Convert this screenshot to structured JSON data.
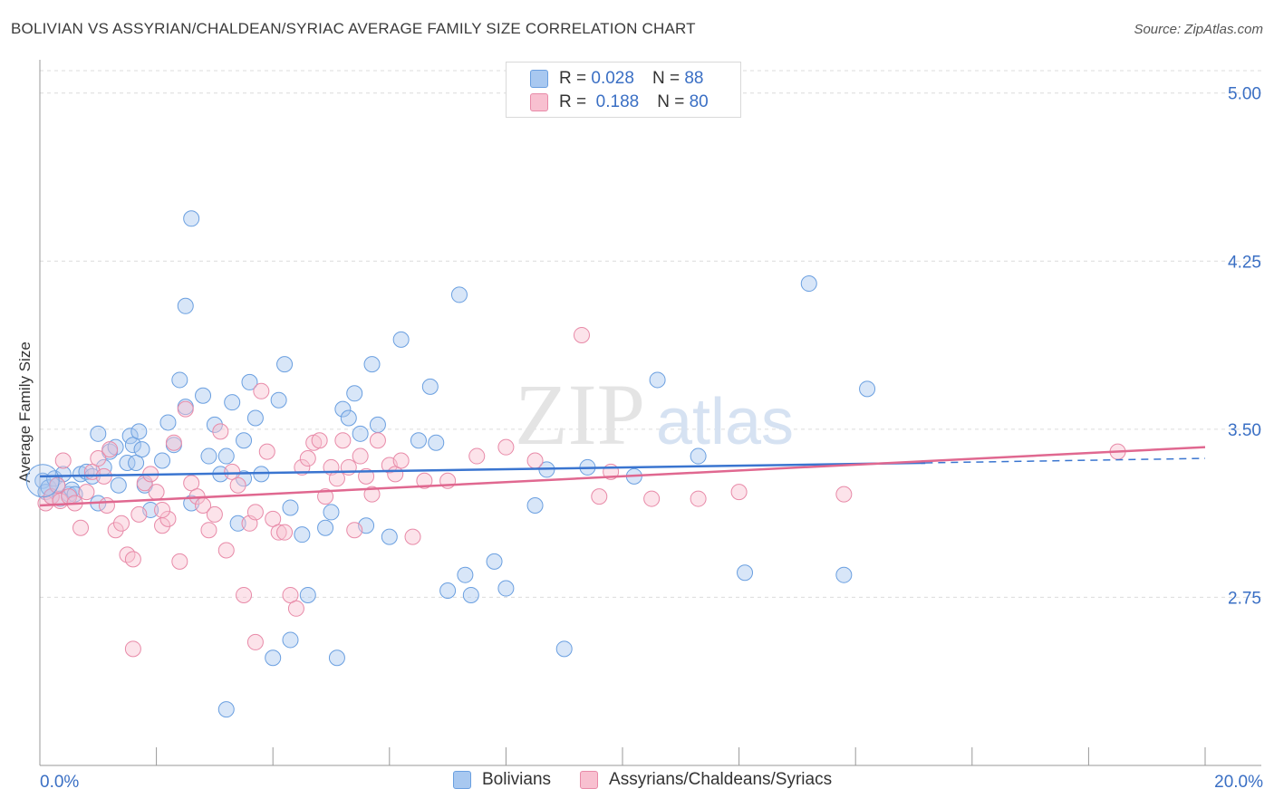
{
  "title": "BOLIVIAN VS ASSYRIAN/CHALDEAN/SYRIAC AVERAGE FAMILY SIZE CORRELATION CHART",
  "source": "Source: ZipAtlas.com",
  "legend": {
    "r_label": "R =",
    "n_label": "N =",
    "rows": [
      {
        "r": "0.028",
        "n": "88",
        "color": "#a8c8f0",
        "border": "#6a9fe0"
      },
      {
        "r": "0.188",
        "n": "80",
        "color": "#f8c0d0",
        "border": "#e88aa8"
      }
    ]
  },
  "bottom_legend": [
    {
      "label": "Bolivians",
      "color": "#a8c8f0",
      "border": "#6a9fe0"
    },
    {
      "label": "Assyrians/Chaldeans/Syriacs",
      "color": "#f8c0d0",
      "border": "#e88aa8"
    }
  ],
  "watermark": {
    "zip": "ZIP",
    "atlas": "atlas"
  },
  "chart_data": {
    "type": "scatter",
    "title": "BOLIVIAN VS ASSYRIAN/CHALDEAN/SYRIAC AVERAGE FAMILY SIZE CORRELATION CHART",
    "xlabel": "",
    "ylabel": "Average Family Size",
    "xlim": [
      0,
      20
    ],
    "ylim": [
      2.0,
      5.1
    ],
    "x_tick_labels": [
      "0.0%",
      "20.0%"
    ],
    "y_ticks": [
      2.75,
      3.5,
      4.25,
      5.0
    ],
    "y_tick_labels": [
      "2.75",
      "3.50",
      "4.25",
      "5.00"
    ],
    "grid": true,
    "series": [
      {
        "name": "Bolivians",
        "color": "#6a9fe0",
        "trend": {
          "x0": 0,
          "y0": 3.29,
          "x1": 15.2,
          "y1": 3.35,
          "dash_to": 20,
          "dash_y": 3.37,
          "color": "#3a75d0"
        },
        "points": [
          [
            0.05,
            3.27
          ],
          [
            0.1,
            3.22
          ],
          [
            0.15,
            3.24
          ],
          [
            0.2,
            3.2
          ],
          [
            0.25,
            3.28
          ],
          [
            0.3,
            3.25
          ],
          [
            0.35,
            3.19
          ],
          [
            0.4,
            3.3
          ],
          [
            0.5,
            3.21
          ],
          [
            0.55,
            3.23
          ],
          [
            0.7,
            3.3
          ],
          [
            0.8,
            3.31
          ],
          [
            0.9,
            3.29
          ],
          [
            1.0,
            3.17
          ],
          [
            1.1,
            3.33
          ],
          [
            1.2,
            3.4
          ],
          [
            1.3,
            3.42
          ],
          [
            1.35,
            3.25
          ],
          [
            1.5,
            3.35
          ],
          [
            1.55,
            3.47
          ],
          [
            1.6,
            3.43
          ],
          [
            1.65,
            3.35
          ],
          [
            1.7,
            3.49
          ],
          [
            1.75,
            3.41
          ],
          [
            1.8,
            3.25
          ],
          [
            1.9,
            3.14
          ],
          [
            2.1,
            3.36
          ],
          [
            2.3,
            3.43
          ],
          [
            2.4,
            3.72
          ],
          [
            2.5,
            3.6
          ],
          [
            2.6,
            3.17
          ],
          [
            2.8,
            3.65
          ],
          [
            2.9,
            3.38
          ],
          [
            3.0,
            3.52
          ],
          [
            3.1,
            3.3
          ],
          [
            3.2,
            3.38
          ],
          [
            3.3,
            3.62
          ],
          [
            3.4,
            3.08
          ],
          [
            3.5,
            3.45
          ],
          [
            3.6,
            3.71
          ],
          [
            3.7,
            3.55
          ],
          [
            3.8,
            3.3
          ],
          [
            4.1,
            3.63
          ],
          [
            4.2,
            3.79
          ],
          [
            4.3,
            3.15
          ],
          [
            4.5,
            3.03
          ],
          [
            4.6,
            2.76
          ],
          [
            4.9,
            3.06
          ],
          [
            5.0,
            3.13
          ],
          [
            5.1,
            2.48
          ],
          [
            5.2,
            3.59
          ],
          [
            5.3,
            3.55
          ],
          [
            5.4,
            3.66
          ],
          [
            5.5,
            3.48
          ],
          [
            5.6,
            3.07
          ],
          [
            5.7,
            3.79
          ],
          [
            5.8,
            3.52
          ],
          [
            6.0,
            3.02
          ],
          [
            6.2,
            3.9
          ],
          [
            6.5,
            3.45
          ],
          [
            6.7,
            3.69
          ],
          [
            6.8,
            3.44
          ],
          [
            7.0,
            2.78
          ],
          [
            7.2,
            4.1
          ],
          [
            7.3,
            2.85
          ],
          [
            7.4,
            2.76
          ],
          [
            7.8,
            2.91
          ],
          [
            8.0,
            2.79
          ],
          [
            8.5,
            3.16
          ],
          [
            8.7,
            3.32
          ],
          [
            9.0,
            2.52
          ],
          [
            9.4,
            3.33
          ],
          [
            10.2,
            3.29
          ],
          [
            10.6,
            3.72
          ],
          [
            11.3,
            3.38
          ],
          [
            12.1,
            2.86
          ],
          [
            13.2,
            4.15
          ],
          [
            13.8,
            2.85
          ],
          [
            14.2,
            3.68
          ],
          [
            2.6,
            4.44
          ],
          [
            2.5,
            4.05
          ],
          [
            3.2,
            2.25
          ],
          [
            4.0,
            2.48
          ],
          [
            4.3,
            2.56
          ],
          [
            3.5,
            3.28
          ],
          [
            1.0,
            3.48
          ],
          [
            0.6,
            3.21
          ],
          [
            2.2,
            3.53
          ]
        ]
      },
      {
        "name": "Assyrians/Chaldeans/Syriacs",
        "color": "#e88aa8",
        "trend": {
          "x0": 0,
          "y0": 3.16,
          "x1": 20,
          "y1": 3.42,
          "color": "#e06890"
        },
        "points": [
          [
            0.1,
            3.17
          ],
          [
            0.2,
            3.2
          ],
          [
            0.3,
            3.25
          ],
          [
            0.35,
            3.18
          ],
          [
            0.4,
            3.36
          ],
          [
            0.5,
            3.2
          ],
          [
            0.6,
            3.17
          ],
          [
            0.7,
            3.06
          ],
          [
            0.8,
            3.22
          ],
          [
            0.9,
            3.31
          ],
          [
            1.0,
            3.37
          ],
          [
            1.1,
            3.29
          ],
          [
            1.15,
            3.16
          ],
          [
            1.2,
            3.41
          ],
          [
            1.3,
            3.05
          ],
          [
            1.4,
            3.08
          ],
          [
            1.5,
            2.94
          ],
          [
            1.6,
            2.92
          ],
          [
            1.7,
            3.12
          ],
          [
            1.8,
            3.26
          ],
          [
            1.9,
            3.3
          ],
          [
            2.0,
            3.22
          ],
          [
            2.1,
            3.07
          ],
          [
            2.2,
            3.1
          ],
          [
            2.3,
            3.44
          ],
          [
            2.4,
            2.91
          ],
          [
            2.5,
            3.59
          ],
          [
            2.6,
            3.26
          ],
          [
            2.7,
            3.2
          ],
          [
            2.8,
            3.16
          ],
          [
            2.9,
            3.05
          ],
          [
            3.0,
            3.12
          ],
          [
            3.1,
            3.49
          ],
          [
            3.2,
            2.96
          ],
          [
            3.3,
            3.31
          ],
          [
            3.4,
            3.25
          ],
          [
            3.5,
            2.76
          ],
          [
            3.6,
            3.08
          ],
          [
            3.7,
            3.13
          ],
          [
            3.8,
            3.67
          ],
          [
            3.9,
            3.4
          ],
          [
            4.0,
            3.1
          ],
          [
            4.1,
            3.04
          ],
          [
            4.2,
            3.04
          ],
          [
            4.3,
            2.76
          ],
          [
            4.4,
            2.7
          ],
          [
            4.5,
            3.33
          ],
          [
            4.6,
            3.37
          ],
          [
            4.7,
            3.44
          ],
          [
            4.8,
            3.45
          ],
          [
            4.9,
            3.2
          ],
          [
            5.0,
            3.33
          ],
          [
            5.1,
            3.28
          ],
          [
            5.2,
            3.45
          ],
          [
            5.3,
            3.33
          ],
          [
            5.4,
            3.05
          ],
          [
            5.5,
            3.38
          ],
          [
            5.6,
            3.29
          ],
          [
            5.7,
            3.21
          ],
          [
            5.8,
            3.45
          ],
          [
            6.0,
            3.34
          ],
          [
            6.1,
            3.3
          ],
          [
            6.2,
            3.36
          ],
          [
            6.4,
            3.02
          ],
          [
            6.6,
            3.27
          ],
          [
            7.0,
            3.27
          ],
          [
            7.5,
            3.38
          ],
          [
            8.0,
            3.42
          ],
          [
            8.5,
            3.36
          ],
          [
            9.3,
            3.92
          ],
          [
            9.6,
            3.2
          ],
          [
            9.8,
            3.31
          ],
          [
            10.5,
            3.19
          ],
          [
            11.3,
            3.19
          ],
          [
            12.0,
            3.22
          ],
          [
            13.8,
            3.21
          ],
          [
            18.5,
            3.4
          ],
          [
            3.7,
            2.55
          ],
          [
            1.6,
            2.52
          ],
          [
            2.1,
            3.14
          ]
        ]
      }
    ]
  }
}
